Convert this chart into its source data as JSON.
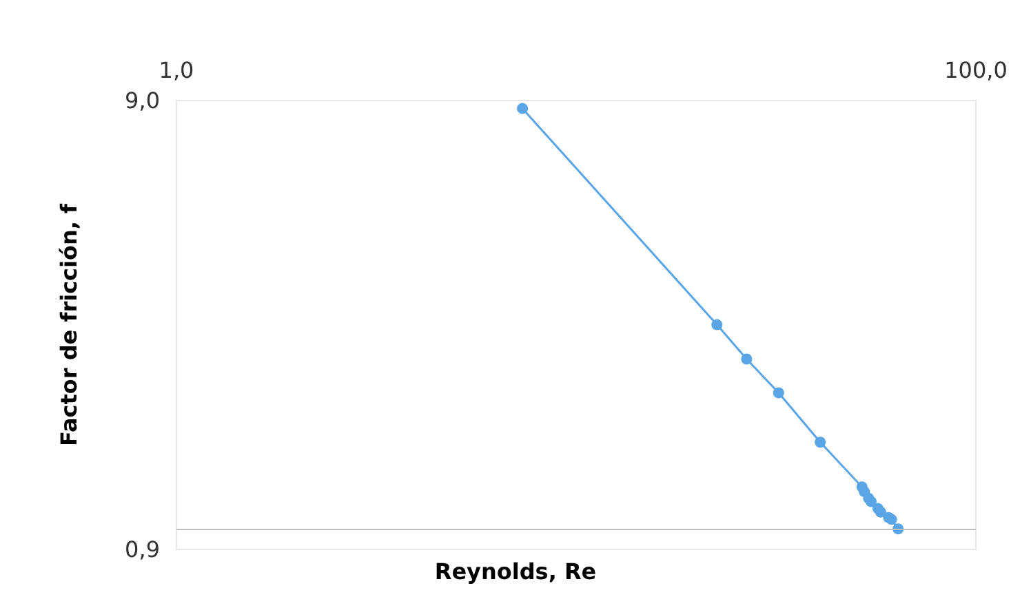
{
  "chart_data": {
    "type": "line",
    "xlabel": "Reynolds, Re",
    "ylabel": "Factor de fricción, f",
    "log": "xy",
    "xlim": [
      1,
      100
    ],
    "xticks": [
      {
        "value": 1,
        "label": "1,0"
      },
      {
        "value": 100,
        "label": "100,0"
      }
    ],
    "ylim": [
      0.9,
      9
    ],
    "yticks": [
      {
        "value": 0.9,
        "label": "0,9"
      },
      {
        "value": 9,
        "label": "9,0"
      }
    ],
    "grid": false,
    "marker": "circle",
    "line_style": "solid",
    "ref_lines": [
      {
        "axis": "y",
        "value": 1,
        "color": "#bfbfbf"
      }
    ],
    "series": [
      {
        "color": "#5aa5e6",
        "x": [
          7.34,
          22.5,
          26.7,
          32.1,
          40.8,
          51.9,
          52.6,
          53.9,
          54.7,
          56.9,
          57.8,
          60.5,
          61.5,
          63.9
        ],
        "values": [
          8.64,
          2.85,
          2.39,
          2.01,
          1.56,
          1.24,
          1.21,
          1.17,
          1.15,
          1.11,
          1.09,
          1.06,
          1.05,
          1.0
        ]
      }
    ]
  }
}
